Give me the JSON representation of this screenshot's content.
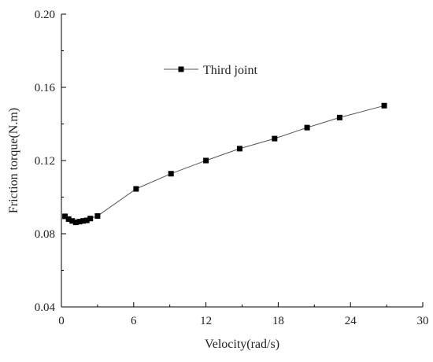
{
  "chart_data": {
    "type": "line",
    "xlabel": "Velocity(rad/s)",
    "ylabel": "Friction torque(N.m)",
    "xlim": [
      0,
      30
    ],
    "ylim": [
      0.04,
      0.2
    ],
    "xticks": [
      0,
      6,
      12,
      18,
      24,
      30
    ],
    "yticks": [
      0.04,
      0.08,
      0.12,
      0.16,
      0.2
    ],
    "xtick_labels": [
      "0",
      "6",
      "12",
      "18",
      "24",
      "30"
    ],
    "ytick_labels": [
      "0.04",
      "0.08",
      "0.12",
      "0.16",
      "0.20"
    ],
    "grid": false,
    "legend_position": "top-left",
    "series": [
      {
        "name": "Third joint",
        "color": "#000000",
        "marker": "square",
        "x": [
          0.3,
          0.6,
          0.9,
          1.2,
          1.5,
          1.8,
          2.1,
          2.4,
          3.0,
          6.2,
          9.1,
          12.0,
          14.8,
          17.7,
          20.4,
          23.1,
          26.8
        ],
        "y": [
          0.0895,
          0.088,
          0.087,
          0.0862,
          0.0866,
          0.087,
          0.0873,
          0.0883,
          0.0897,
          0.1045,
          0.1128,
          0.12,
          0.1265,
          0.132,
          0.138,
          0.1435,
          0.15
        ]
      }
    ]
  }
}
